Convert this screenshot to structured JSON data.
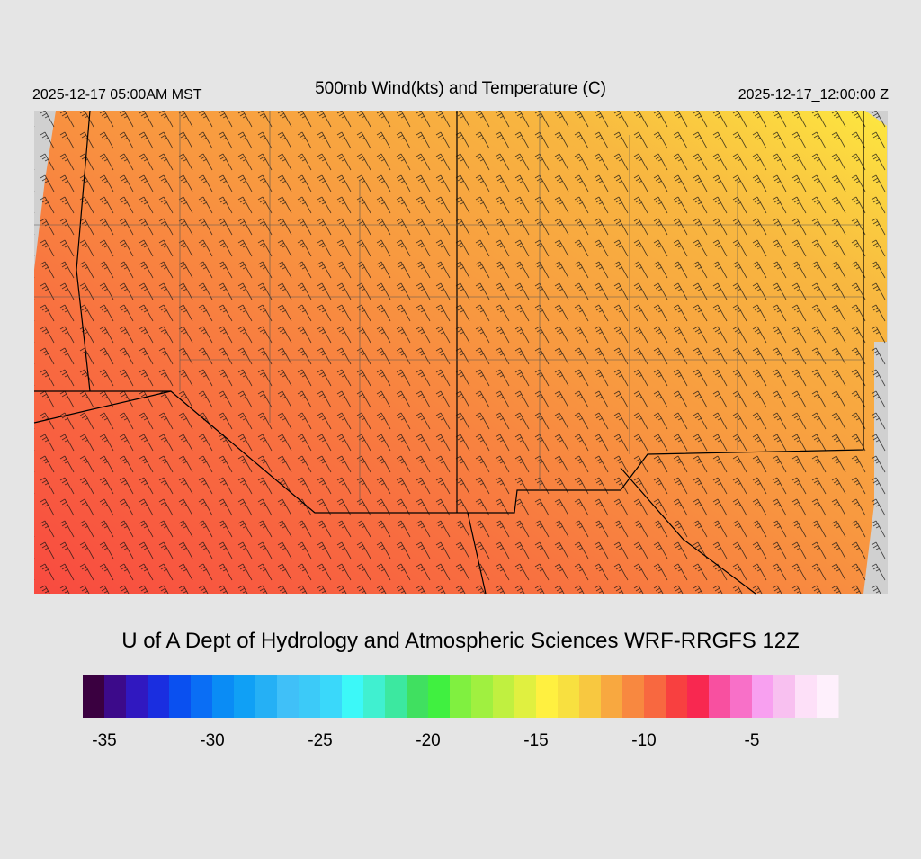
{
  "header": {
    "valid_local": "2025-12-17 05:00AM MST",
    "title": "500mb Wind(kts) and Temperature (C)",
    "valid_utc": "2025-12-17_12:00:00 Z"
  },
  "footer": {
    "credit": "U of A Dept of Hydrology and Atmospheric Sciences WRF-RRGFS 12Z"
  },
  "colorbar": {
    "range": [
      -36,
      -1
    ],
    "ticks": [
      -35,
      -30,
      -25,
      -20,
      -15,
      -10,
      -5
    ],
    "colors": [
      "#3a0040",
      "#3c0a8a",
      "#3018c0",
      "#1a2ee0",
      "#0a50f0",
      "#0a6ef5",
      "#0a8cf5",
      "#10a0f5",
      "#25b0f5",
      "#40c0f8",
      "#3ccaf8",
      "#3ad8fa",
      "#3cf8f8",
      "#40f0d0",
      "#3ce8a0",
      "#40e060",
      "#40f040",
      "#80f040",
      "#a0f040",
      "#c0f040",
      "#e0f040",
      "#fff040",
      "#f8e040",
      "#f8c840",
      "#f8a840",
      "#f88840",
      "#f86840",
      "#f84040",
      "#f82850",
      "#f850a0",
      "#f870c8",
      "#f8a0f0",
      "#f8c0f0",
      "#fde0f8",
      "#fef0fc"
    ]
  }
}
